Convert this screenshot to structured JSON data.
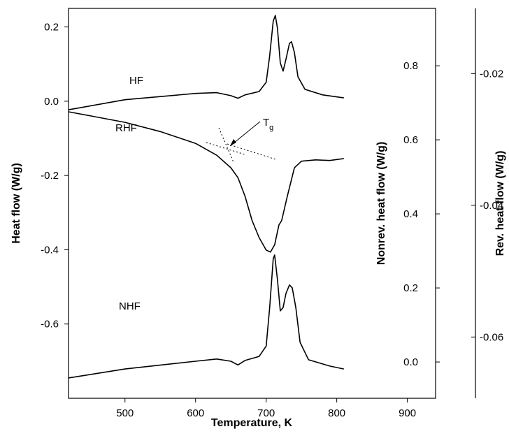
{
  "chart_data": {
    "type": "line",
    "xlabel": "Temperature, K",
    "ylabel": "Heat flow (W/g)",
    "y2label": "Nonrev. heat flow (W/g)",
    "y3label": "Rev. heat flow (W/g)",
    "xlim": [
      420,
      940
    ],
    "xticks": [
      500,
      600,
      700,
      800,
      900
    ],
    "ylim": [
      -0.8,
      0.25
    ],
    "yticks": [
      -0.6,
      -0.4,
      -0.2,
      {
        "value": 0,
        "label": "0.0"
      },
      0.2
    ],
    "y2lim": [
      -0.098,
      0.955
    ],
    "y2ticks": [
      {
        "value": 0,
        "label": "0.0"
      },
      0.2,
      0.4,
      0.6,
      0.8
    ],
    "y3lim": [
      -0.0693,
      -0.0101
    ],
    "y3ticks": [
      -0.06,
      -0.04,
      -0.02
    ],
    "series": [
      {
        "name": "HF",
        "color": "#000000",
        "axis": "y",
        "x": [
          420,
          500,
          600,
          630,
          650,
          660,
          670,
          690,
          700,
          705,
          710,
          713,
          716,
          720,
          724,
          728,
          733,
          736,
          740,
          745,
          755,
          780,
          810
        ],
        "values": [
          -0.023,
          0.004,
          0.021,
          0.023,
          0.015,
          0.008,
          0.017,
          0.026,
          0.051,
          0.122,
          0.216,
          0.231,
          0.197,
          0.103,
          0.081,
          0.113,
          0.156,
          0.16,
          0.131,
          0.066,
          0.032,
          0.017,
          0.009
        ]
      },
      {
        "name": "RHF",
        "color": "#000000",
        "axis": "y3",
        "x": [
          420,
          450,
          500,
          550,
          600,
          630,
          650,
          660,
          670,
          680,
          690,
          700,
          706,
          712,
          718,
          722,
          730,
          740,
          750,
          770,
          790,
          810
        ],
        "values": [
          -0.0258,
          -0.0264,
          -0.0274,
          -0.0288,
          -0.0306,
          -0.0324,
          -0.0343,
          -0.0358,
          -0.0386,
          -0.0423,
          -0.0449,
          -0.0468,
          -0.0471,
          -0.046,
          -0.043,
          -0.0423,
          -0.0386,
          -0.0343,
          -0.0333,
          -0.0331,
          -0.0332,
          -0.0329
        ]
      },
      {
        "name": "NHF",
        "color": "#000000",
        "axis": "y2",
        "x": [
          420,
          500,
          600,
          630,
          650,
          660,
          670,
          690,
          700,
          705,
          710,
          712,
          716,
          720,
          724,
          728,
          733,
          737,
          742,
          748,
          760,
          790,
          810
        ],
        "values": [
          -0.043,
          -0.019,
          0.002,
          0.008,
          0.002,
          -0.008,
          0.004,
          0.015,
          0.043,
          0.147,
          0.279,
          0.289,
          0.223,
          0.138,
          0.147,
          0.185,
          0.208,
          0.2,
          0.147,
          0.053,
          0.006,
          -0.011,
          -0.019
        ]
      }
    ],
    "annotation": {
      "text": "T",
      "sub": "g"
    }
  }
}
